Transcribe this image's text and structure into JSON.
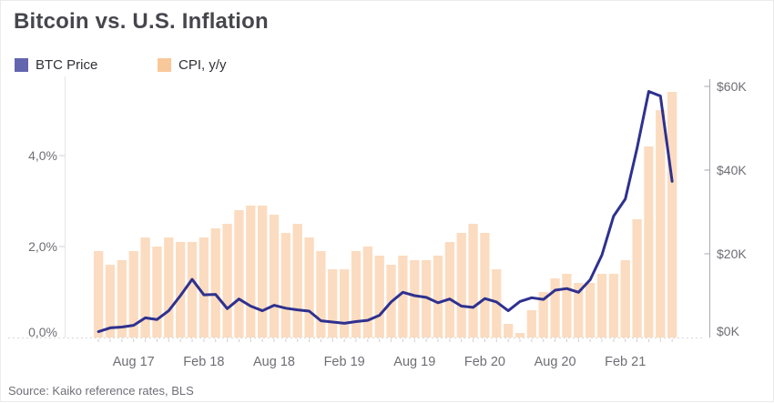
{
  "title": "Bitcoin vs. U.S. Inflation",
  "legend": [
    {
      "label": "BTC Price",
      "color": "#6366ae",
      "swatch_icon": "square-swatch-icon"
    },
    {
      "label": "CPI, y/y",
      "color": "#f9c89a",
      "swatch_icon": "square-swatch-icon"
    }
  ],
  "source": "Source: Kaiko reference rates, BLS",
  "colors": {
    "bar": "#fbdcc0",
    "line": "#2e318f",
    "axis_text": "#6e6e75",
    "left_axis_line": "#e4e4e8",
    "right_axis_line": "#a9a9b0",
    "baseline_dotted": "#d8d8dc",
    "tick": "#cfcfd4",
    "title_text": "#46464d"
  },
  "chart_data": {
    "type": "bar+line",
    "title": "Bitcoin vs. U.S. Inflation",
    "categories": [
      "May 17",
      "Jun 17",
      "Jul 17",
      "Aug 17",
      "Sep 17",
      "Oct 17",
      "Nov 17",
      "Dec 17",
      "Jan 18",
      "Feb 18",
      "Mar 18",
      "Apr 18",
      "May 18",
      "Jun 18",
      "Jul 18",
      "Aug 18",
      "Sep 18",
      "Oct 18",
      "Nov 18",
      "Dec 18",
      "Jan 19",
      "Feb 19",
      "Mar 19",
      "Apr 19",
      "May 19",
      "Jun 19",
      "Jul 19",
      "Aug 19",
      "Sep 19",
      "Oct 19",
      "Nov 19",
      "Dec 19",
      "Jan 20",
      "Feb 20",
      "Mar 20",
      "Apr 20",
      "May 20",
      "Jun 20",
      "Jul 20",
      "Aug 20",
      "Sep 20",
      "Oct 20",
      "Nov 20",
      "Dec 20",
      "Jan 21",
      "Feb 21",
      "Mar 21",
      "Apr 21",
      "May 21",
      "Jun 21"
    ],
    "series": [
      {
        "name": "CPI, y/y",
        "type": "bar",
        "axis": "left",
        "unit": "%",
        "values": [
          1.9,
          1.6,
          1.7,
          1.9,
          2.2,
          2.0,
          2.2,
          2.1,
          2.1,
          2.2,
          2.4,
          2.5,
          2.8,
          2.9,
          2.9,
          2.7,
          2.3,
          2.5,
          2.2,
          1.9,
          1.5,
          1.5,
          1.9,
          2.0,
          1.8,
          1.6,
          1.8,
          1.7,
          1.7,
          1.8,
          2.1,
          2.3,
          2.5,
          2.3,
          1.5,
          0.3,
          0.1,
          0.6,
          1.0,
          1.3,
          1.4,
          1.2,
          1.2,
          1.4,
          1.4,
          1.7,
          2.6,
          4.2,
          5.0,
          5.4
        ]
      },
      {
        "name": "BTC Price",
        "type": "line",
        "axis": "right",
        "unit": "$K",
        "values": [
          1.4,
          2.3,
          2.5,
          2.9,
          4.7,
          4.3,
          6.4,
          10.0,
          13.9,
          10.2,
          10.3,
          6.9,
          9.2,
          7.5,
          6.4,
          7.7,
          7.0,
          6.6,
          6.3,
          4.0,
          3.7,
          3.4,
          3.8,
          4.1,
          5.3,
          8.5,
          10.8,
          10.0,
          9.6,
          8.3,
          9.2,
          7.5,
          7.2,
          9.3,
          8.5,
          6.4,
          8.6,
          9.5,
          9.1,
          11.3,
          11.7,
          10.8,
          13.8,
          19.7,
          29.0,
          33.1,
          45.2,
          58.8,
          57.7,
          37.3
        ]
      }
    ],
    "x_axis": {
      "tick_labels": [
        "Aug 17",
        "Feb 18",
        "Aug 18",
        "Feb 19",
        "Aug 19",
        "Feb 20",
        "Aug 20",
        "Feb 21"
      ],
      "tick_month_indices": [
        3,
        9,
        15,
        21,
        27,
        33,
        39,
        45
      ]
    },
    "left_axis": {
      "tick_labels": [
        "0,0%",
        "2,0%",
        "4,0%"
      ],
      "tick_values": [
        0,
        2,
        4
      ],
      "range": [
        0,
        5.7
      ],
      "grid": false
    },
    "right_axis": {
      "tick_labels": [
        "$0K",
        "$20K",
        "$40K",
        "$60K"
      ],
      "tick_values": [
        0,
        20,
        40,
        60
      ],
      "range": [
        0,
        62
      ],
      "grid": false
    },
    "legend_position": "top-left"
  }
}
